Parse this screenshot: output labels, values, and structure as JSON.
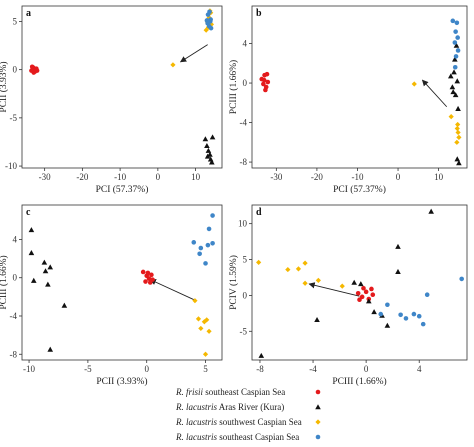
{
  "series_styles": [
    {
      "key": "frisii",
      "marker": "circle",
      "color": "#e41a1c"
    },
    {
      "key": "aras",
      "marker": "triangle",
      "color": "#111111"
    },
    {
      "key": "sw",
      "marker": "diamond",
      "color": "#f5b800"
    },
    {
      "key": "se",
      "marker": "circle",
      "color": "#3f86c8"
    }
  ],
  "legend": [
    {
      "species": "R. frisii",
      "place": "southeast Caspian Sea",
      "series": "frisii"
    },
    {
      "species": "R. lacustris",
      "place": "Aras River (Kura)",
      "series": "aras"
    },
    {
      "species": "R. lacustris",
      "place": "southwest Caspian Sea",
      "series": "sw"
    },
    {
      "species": "R. lacustris",
      "place": "southeast Caspian Sea",
      "series": "se"
    }
  ],
  "chart_data": [
    {
      "type": "scatter",
      "panel": "a",
      "xlabel": "PCI (57.37%)",
      "ylabel": "PCII (3.93%)",
      "xlim": [
        -36,
        17
      ],
      "ylim": [
        -10.2,
        6.6
      ],
      "xticks": [
        -30,
        -20,
        -10,
        0,
        10
      ],
      "yticks": [
        5,
        0,
        -5,
        -10
      ],
      "arrow": {
        "from": [
          13.2,
          2.6
        ],
        "to": [
          6.0,
          0.8
        ]
      },
      "series": [
        {
          "series": "frisii",
          "points": [
            [
              -33.5,
              -0.1
            ],
            [
              -33.0,
              0.2
            ],
            [
              -32.6,
              -0.2
            ],
            [
              -32.2,
              0.1
            ],
            [
              -32.9,
              -0.3
            ],
            [
              -32.0,
              -0.1
            ],
            [
              -33.3,
              0.3
            ],
            [
              -32.4,
              0.0
            ]
          ]
        },
        {
          "series": "aras",
          "points": [
            [
              12.6,
              -7.2
            ],
            [
              13.0,
              -7.9
            ],
            [
              13.4,
              -8.4
            ],
            [
              13.8,
              -8.8
            ],
            [
              14.0,
              -9.3
            ],
            [
              14.3,
              -9.6
            ],
            [
              14.5,
              -7.0
            ],
            [
              13.2,
              -9.0
            ]
          ]
        },
        {
          "series": "sw",
          "points": [
            [
              4.0,
              0.5
            ],
            [
              12.8,
              4.1
            ],
            [
              13.2,
              4.9
            ],
            [
              13.6,
              5.4
            ],
            [
              14.0,
              5.9
            ],
            [
              13.4,
              4.4
            ],
            [
              14.2,
              4.7
            ],
            [
              13.8,
              6.1
            ]
          ]
        },
        {
          "series": "se",
          "points": [
            [
              13.0,
              5.1
            ],
            [
              13.3,
              5.7
            ],
            [
              13.6,
              4.5
            ],
            [
              14.0,
              5.2
            ],
            [
              14.1,
              4.3
            ],
            [
              13.7,
              6.0
            ],
            [
              13.9,
              5.0
            ],
            [
              13.2,
              4.8
            ]
          ]
        }
      ]
    },
    {
      "type": "scatter",
      "panel": "b",
      "xlabel": "PCI (57.37%)",
      "ylabel": "PCIII (1.66%)",
      "xlim": [
        -36,
        17
      ],
      "ylim": [
        -8.6,
        7.8
      ],
      "xticks": [
        -30,
        -20,
        -10,
        0,
        10
      ],
      "yticks": [
        4,
        0,
        -4,
        -8
      ],
      "arrow": {
        "from": [
          12.0,
          -2.4
        ],
        "to": [
          6.0,
          0.3
        ]
      },
      "series": [
        {
          "series": "frisii",
          "points": [
            [
              -33.6,
              0.4
            ],
            [
              -33.2,
              -0.1
            ],
            [
              -32.9,
              0.8
            ],
            [
              -32.5,
              -0.4
            ],
            [
              -32.1,
              0.1
            ],
            [
              -32.7,
              -0.7
            ],
            [
              -32.3,
              0.9
            ],
            [
              -33.0,
              0.3
            ]
          ]
        },
        {
          "series": "aras",
          "points": [
            [
              13.0,
              0.7
            ],
            [
              13.4,
              -0.4
            ],
            [
              13.8,
              1.1
            ],
            [
              14.2,
              -1.2
            ],
            [
              14.0,
              2.4
            ],
            [
              14.6,
              0.2
            ],
            [
              14.8,
              -2.6
            ],
            [
              15.0,
              -8.1
            ],
            [
              14.6,
              -7.7
            ],
            [
              13.6,
              -0.9
            ],
            [
              14.4,
              3.8
            ]
          ]
        },
        {
          "series": "sw",
          "points": [
            [
              4.0,
              -0.1
            ],
            [
              13.1,
              -3.4
            ],
            [
              14.6,
              -4.6
            ],
            [
              14.8,
              -5.0
            ],
            [
              15.0,
              -5.5
            ],
            [
              14.5,
              -6.0
            ],
            [
              14.7,
              -4.2
            ]
          ]
        },
        {
          "series": "se",
          "points": [
            [
              13.5,
              6.3
            ],
            [
              14.5,
              6.1
            ],
            [
              14.2,
              5.2
            ],
            [
              14.7,
              4.6
            ],
            [
              14.0,
              4.1
            ],
            [
              14.3,
              2.7
            ],
            [
              14.8,
              3.3
            ],
            [
              14.1,
              1.6
            ]
          ]
        }
      ]
    },
    {
      "type": "scatter",
      "panel": "c",
      "xlabel": "PCII (3.93%)",
      "ylabel": "PCIII (1.66%)",
      "xlim": [
        -10.6,
        6.4
      ],
      "ylim": [
        -8.6,
        7.6
      ],
      "xticks": [
        -10,
        -5,
        0,
        5
      ],
      "yticks": [
        4,
        0,
        -4,
        -8
      ],
      "arrow": {
        "from": [
          4.2,
          -2.4
        ],
        "to": [
          0.3,
          -0.2
        ]
      },
      "series": [
        {
          "series": "frisii",
          "points": [
            [
              -0.3,
              0.6
            ],
            [
              0.0,
              0.2
            ],
            [
              0.2,
              -0.1
            ],
            [
              0.4,
              0.3
            ],
            [
              -0.1,
              -0.4
            ],
            [
              0.5,
              -0.2
            ],
            [
              0.1,
              0.5
            ],
            [
              0.3,
              -0.5
            ]
          ]
        },
        {
          "series": "aras",
          "points": [
            [
              -9.8,
              5.0
            ],
            [
              -9.8,
              2.6
            ],
            [
              -9.6,
              -0.3
            ],
            [
              -8.7,
              1.6
            ],
            [
              -8.4,
              -0.7
            ],
            [
              -8.6,
              0.7
            ],
            [
              -8.2,
              1.1
            ],
            [
              -7.0,
              -2.9
            ],
            [
              -8.2,
              -7.5
            ]
          ]
        },
        {
          "series": "sw",
          "points": [
            [
              4.1,
              -2.4
            ],
            [
              4.4,
              -4.3
            ],
            [
              4.9,
              -4.6
            ],
            [
              4.6,
              -5.3
            ],
            [
              5.1,
              -4.4
            ],
            [
              5.3,
              -5.6
            ],
            [
              5.0,
              -8.0
            ]
          ]
        },
        {
          "series": "se",
          "points": [
            [
              4.0,
              3.7
            ],
            [
              4.5,
              2.5
            ],
            [
              5.0,
              1.5
            ],
            [
              5.2,
              3.4
            ],
            [
              5.6,
              3.6
            ],
            [
              5.3,
              5.1
            ],
            [
              5.6,
              6.5
            ],
            [
              4.6,
              3.1
            ]
          ]
        }
      ]
    },
    {
      "type": "scatter",
      "panel": "d",
      "xlabel": "PCIII (1.66%)",
      "ylabel": "PCIV (1.59%)",
      "xlim": [
        -8.6,
        7.6
      ],
      "ylim": [
        -9.0,
        12.6
      ],
      "xticks": [
        -8,
        -4,
        0,
        4
      ],
      "yticks": [
        10,
        5,
        0,
        -5
      ],
      "arrow": {
        "from": [
          -0.5,
          -0.1
        ],
        "to": [
          -4.3,
          1.6
        ]
      },
      "series": [
        {
          "series": "frisii",
          "points": [
            [
              -0.6,
              0.3
            ],
            [
              -0.3,
              -0.2
            ],
            [
              0.0,
              0.5
            ],
            [
              0.2,
              -0.5
            ],
            [
              0.5,
              0.1
            ],
            [
              -0.2,
              1.0
            ],
            [
              0.4,
              0.9
            ],
            [
              -0.5,
              -0.6
            ]
          ]
        },
        {
          "series": "aras",
          "points": [
            [
              -7.9,
              -8.4
            ],
            [
              -3.7,
              -3.4
            ],
            [
              -0.9,
              1.8
            ],
            [
              -0.4,
              1.6
            ],
            [
              0.2,
              -0.8
            ],
            [
              0.6,
              -2.3
            ],
            [
              1.2,
              -2.8
            ],
            [
              1.6,
              -4.2
            ],
            [
              2.4,
              6.8
            ],
            [
              2.4,
              3.3
            ],
            [
              4.9,
              11.7
            ]
          ]
        },
        {
          "series": "sw",
          "points": [
            [
              -8.1,
              4.6
            ],
            [
              -5.9,
              3.6
            ],
            [
              -5.1,
              3.7
            ],
            [
              -4.6,
              4.5
            ],
            [
              -4.6,
              1.7
            ],
            [
              -3.6,
              2.1
            ],
            [
              -1.8,
              1.3
            ]
          ]
        },
        {
          "series": "se",
          "points": [
            [
              1.1,
              -2.6
            ],
            [
              1.6,
              -1.3
            ],
            [
              2.6,
              -2.7
            ],
            [
              3.0,
              -3.2
            ],
            [
              3.6,
              -2.6
            ],
            [
              4.0,
              -2.9
            ],
            [
              4.3,
              -4.0
            ],
            [
              4.6,
              0.1
            ],
            [
              7.2,
              2.3
            ]
          ]
        }
      ]
    }
  ]
}
